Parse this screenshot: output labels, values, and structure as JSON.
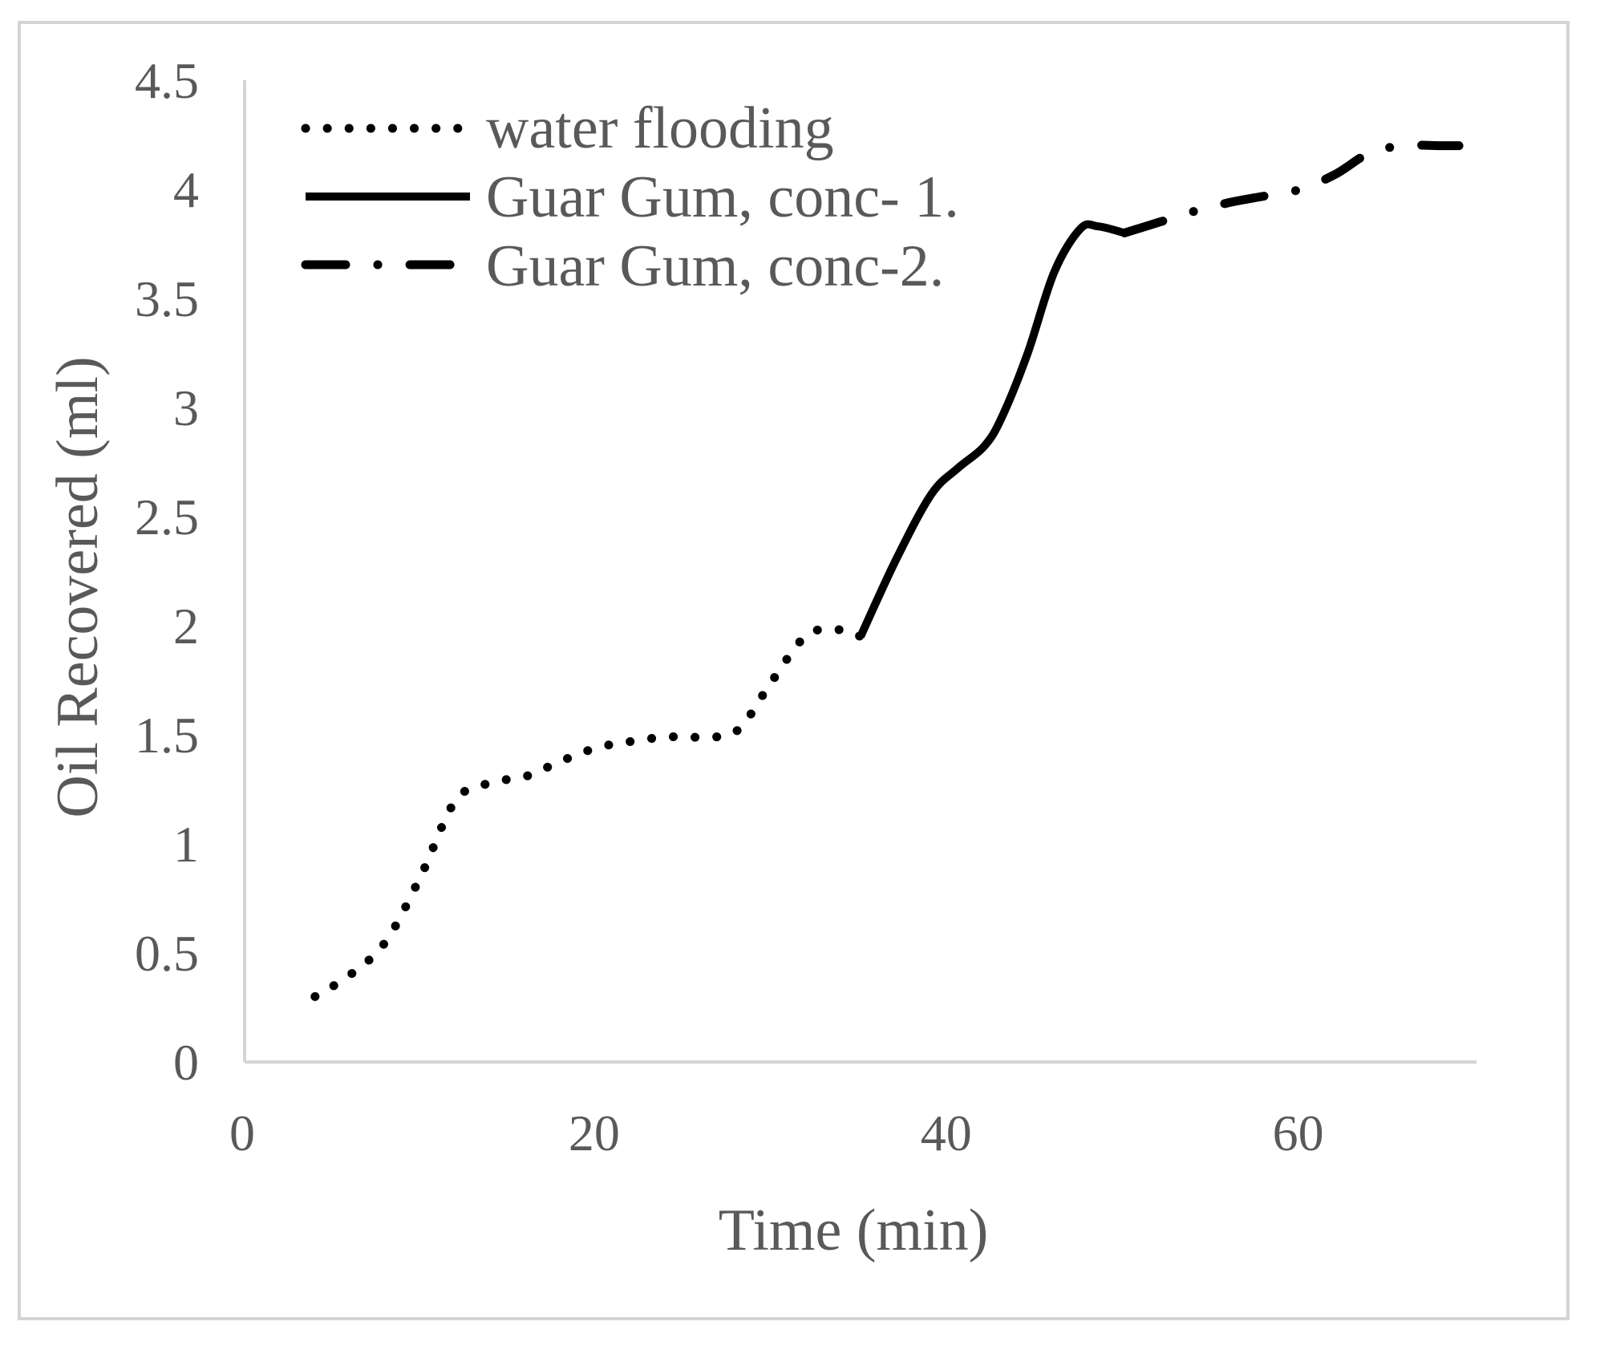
{
  "chart_data": {
    "type": "line",
    "title": "",
    "xlabel": "Time (min)",
    "ylabel": "Oil Recovered (ml)",
    "xlim": [
      0,
      70
    ],
    "ylim": [
      0,
      4.5
    ],
    "x_ticks": [
      0,
      20,
      40,
      60
    ],
    "x_tick_labels": [
      "0",
      "20",
      "40",
      "60"
    ],
    "y_ticks": [
      0,
      0.5,
      1,
      1.5,
      2,
      2.5,
      3,
      3.5,
      4,
      4.5
    ],
    "y_tick_labels": [
      "0",
      "0.5",
      "1",
      "1.5",
      "2",
      "2.5",
      "3",
      "3.5",
      "4",
      "4.5"
    ],
    "grid": false,
    "legend_position": "top-left",
    "series": [
      {
        "name": "water flooding",
        "style": "dotted",
        "color": "#000000",
        "x": [
          4,
          6,
          8,
          10,
          12,
          14,
          16,
          18,
          20,
          22,
          24,
          26,
          28,
          30,
          32,
          34,
          35
        ],
        "y": [
          0.3,
          0.4,
          0.55,
          0.85,
          1.2,
          1.28,
          1.31,
          1.38,
          1.44,
          1.47,
          1.49,
          1.49,
          1.52,
          1.75,
          1.96,
          1.98,
          1.95
        ]
      },
      {
        "name": "Guar Gum, conc- 1.",
        "style": "solid",
        "color": "#000000",
        "x": [
          35,
          37,
          39,
          40.5,
          42,
          43,
          44.5,
          46,
          47.5,
          48.5,
          50
        ],
        "y": [
          1.95,
          2.3,
          2.6,
          2.72,
          2.82,
          2.95,
          3.25,
          3.62,
          3.82,
          3.83,
          3.8
        ]
      },
      {
        "name": "Guar Gum, conc-2.",
        "style": "dash-dot",
        "color": "#000000",
        "x": [
          50,
          52,
          54,
          56,
          58,
          60,
          62,
          64,
          66,
          68,
          69
        ],
        "y": [
          3.8,
          3.85,
          3.9,
          3.94,
          3.97,
          4.0,
          4.07,
          4.17,
          4.2,
          4.2,
          4.2
        ]
      }
    ]
  },
  "colors": {
    "axis": "#d4d4d4",
    "text": "#595959",
    "line": "#000000"
  }
}
